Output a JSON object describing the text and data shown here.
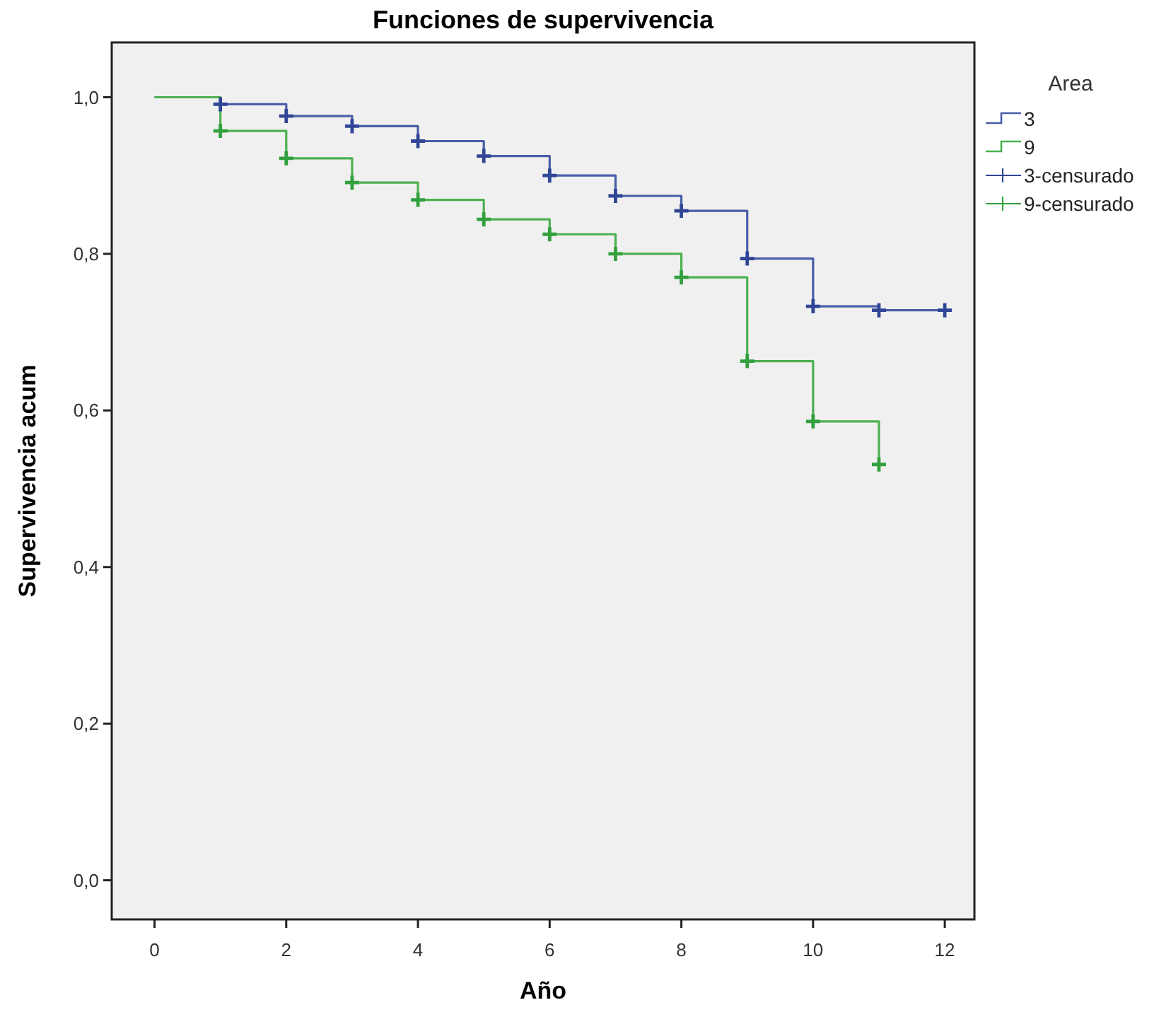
{
  "chart_data": {
    "type": "step",
    "title": "Funciones de supervivencia",
    "xlabel": "Año",
    "ylabel": "Supervivencia acum",
    "legend_title": "Area",
    "xlim": [
      -0.65,
      12.45
    ],
    "xticks": [
      0,
      2,
      4,
      6,
      8,
      10,
      12
    ],
    "ylim": [
      -0.05,
      1.07
    ],
    "yticks": [
      {
        "value": 0,
        "label": "0,0"
      },
      {
        "value": 0.2,
        "label": "0,2"
      },
      {
        "value": 0.4,
        "label": "0,4"
      },
      {
        "value": 0.6,
        "label": "0,6"
      },
      {
        "value": 0.8,
        "label": "0,8"
      },
      {
        "value": 1,
        "label": "1,0"
      }
    ],
    "grid": false,
    "legend": "right",
    "series": [
      {
        "name": "3",
        "color": "#4a5ea8",
        "marker": "none",
        "x": [
          0,
          1,
          2,
          3,
          4,
          5,
          6,
          7,
          8,
          9,
          10,
          11,
          12
        ],
        "values": [
          1.0,
          0.991,
          0.976,
          0.963,
          0.944,
          0.925,
          0.9,
          0.874,
          0.855,
          0.794,
          0.733,
          0.728,
          0.728
        ]
      },
      {
        "name": "9",
        "color": "#4cb050",
        "marker": "none",
        "x": [
          0,
          1,
          2,
          3,
          4,
          5,
          6,
          7,
          8,
          9,
          10,
          11
        ],
        "values": [
          1.0,
          0.957,
          0.922,
          0.891,
          0.869,
          0.844,
          0.825,
          0.8,
          0.77,
          0.663,
          0.586,
          0.531
        ]
      },
      {
        "name": "3-censurado",
        "type": "scatter",
        "color": "#2f4596",
        "marker": "cross",
        "x": [
          1,
          2,
          3,
          4,
          5,
          6,
          7,
          8,
          9,
          10,
          11,
          12
        ],
        "values": [
          0.991,
          0.976,
          0.963,
          0.944,
          0.925,
          0.9,
          0.874,
          0.855,
          0.794,
          0.733,
          0.728,
          0.728
        ]
      },
      {
        "name": "9-censurado",
        "type": "scatter",
        "color": "#32a03c",
        "marker": "cross",
        "x": [
          1,
          2,
          3,
          4,
          5,
          6,
          7,
          8,
          9,
          10,
          11
        ],
        "values": [
          0.957,
          0.922,
          0.891,
          0.869,
          0.844,
          0.825,
          0.8,
          0.77,
          0.663,
          0.586,
          0.531
        ]
      }
    ]
  }
}
